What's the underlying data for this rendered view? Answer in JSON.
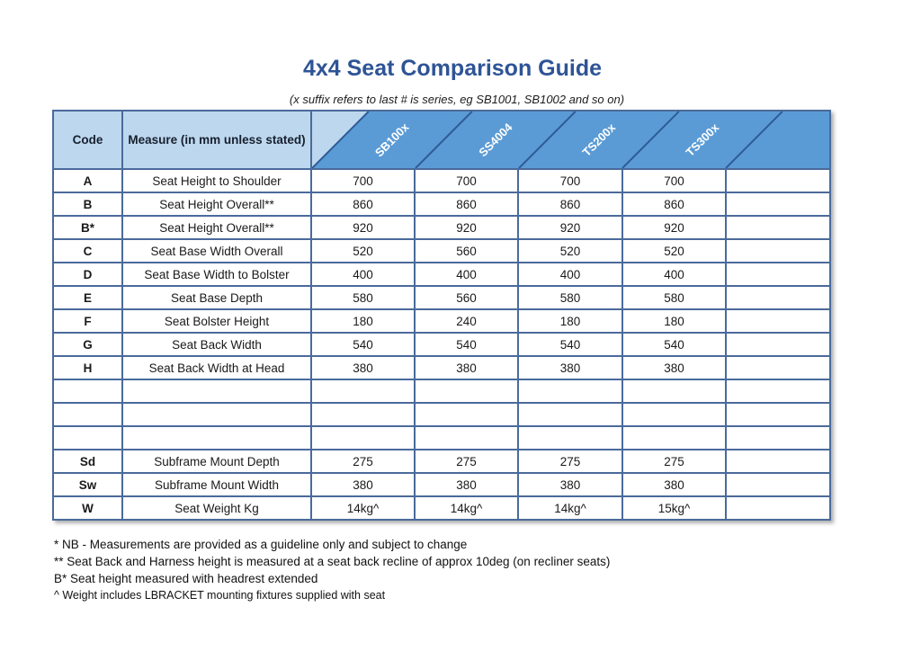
{
  "page": {
    "title": "4x4 Seat Comparison Guide",
    "subtitle": "(x suffix refers to last # is series, eg SB1001, SB1002 and so on)"
  },
  "colors": {
    "title_blue": "#2e5496",
    "header_light_blue": "#bdd7ee",
    "header_band_blue": "#5b9bd5",
    "grid_border_blue": "#4a6a9b",
    "diagonal_line_blue": "#2e5b96",
    "band_label_white": "#ffffff"
  },
  "table": {
    "corner_headers": [
      "Code",
      "Measure (in mm unless stated)"
    ],
    "product_columns": [
      "SB100x",
      "SS4004",
      "TS200x",
      "TS300x",
      ""
    ],
    "rows": [
      {
        "code": "A",
        "measure": "Seat Height to Shoulder",
        "values": [
          "700",
          "700",
          "700",
          "700",
          ""
        ]
      },
      {
        "code": "B",
        "measure": "Seat Height Overall**",
        "values": [
          "860",
          "860",
          "860",
          "860",
          ""
        ]
      },
      {
        "code": "B*",
        "measure": "Seat Height Overall**",
        "values": [
          "920",
          "920",
          "920",
          "920",
          ""
        ]
      },
      {
        "code": "C",
        "measure": "Seat Base Width Overall",
        "values": [
          "520",
          "560",
          "520",
          "520",
          ""
        ]
      },
      {
        "code": "D",
        "measure": "Seat Base Width to Bolster",
        "values": [
          "400",
          "400",
          "400",
          "400",
          ""
        ]
      },
      {
        "code": "E",
        "measure": "Seat Base Depth",
        "values": [
          "580",
          "560",
          "580",
          "580",
          ""
        ]
      },
      {
        "code": "F",
        "measure": "Seat Bolster Height",
        "values": [
          "180",
          "240",
          "180",
          "180",
          ""
        ]
      },
      {
        "code": "G",
        "measure": "Seat Back Width",
        "values": [
          "540",
          "540",
          "540",
          "540",
          ""
        ]
      },
      {
        "code": "H",
        "measure": "Seat Back Width at Head",
        "values": [
          "380",
          "380",
          "380",
          "380",
          ""
        ]
      },
      {
        "code": "",
        "measure": "",
        "values": [
          "",
          "",
          "",
          "",
          ""
        ]
      },
      {
        "code": "",
        "measure": "",
        "values": [
          "",
          "",
          "",
          "",
          ""
        ]
      },
      {
        "code": "",
        "measure": "",
        "values": [
          "",
          "",
          "",
          "",
          ""
        ]
      },
      {
        "code": "Sd",
        "measure": "Subframe Mount Depth",
        "values": [
          "275",
          "275",
          "275",
          "275",
          ""
        ]
      },
      {
        "code": "Sw",
        "measure": "Subframe Mount Width",
        "values": [
          "380",
          "380",
          "380",
          "380",
          ""
        ]
      },
      {
        "code": "W",
        "measure": "Seat Weight Kg",
        "values": [
          "14kg^",
          "14kg^",
          "14kg^",
          "15kg^",
          ""
        ]
      }
    ]
  },
  "footnotes": [
    "* NB - Measurements are provided as a guideline only and subject to change",
    "** Seat Back and Harness height is measured at a seat back recline of approx 10deg (on recliner seats)",
    "B* Seat height measured with headrest extended",
    "^ Weight includes LBRACKET mounting fixtures supplied with seat"
  ]
}
